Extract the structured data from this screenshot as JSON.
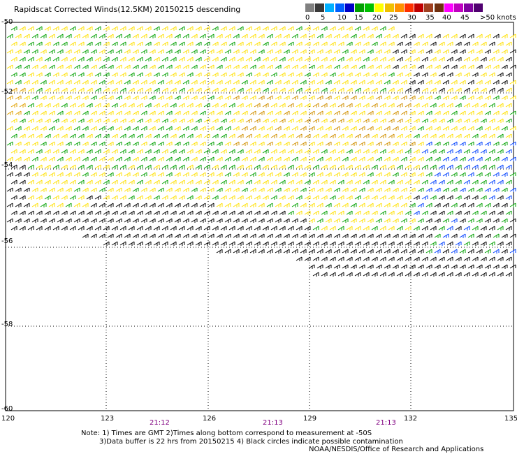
{
  "title": "Rapidscat Corrected Winds(12.5KM) 20150215 descending",
  "scale": {
    "colors": [
      "#808080",
      "#3a3a3a",
      "#00b0ff",
      "#0060ff",
      "#0000c8",
      "#00a000",
      "#00c000",
      "#ffff00",
      "#f0c000",
      "#ff9000",
      "#ff3000",
      "#c00000",
      "#a04020",
      "#703010",
      "#ff00ff",
      "#c000c0",
      "#8000a0",
      "#500070"
    ],
    "labels": [
      "0",
      "5",
      "10",
      "15",
      "20",
      "25",
      "30",
      "35",
      "40",
      "45",
      ">50 knots"
    ]
  },
  "lat_labels": [
    "-50",
    "-52",
    "-54",
    "-56",
    "-58",
    "-60"
  ],
  "lon_labels": [
    "120",
    "123",
    "126",
    "129",
    "132",
    "135"
  ],
  "times": [
    "21:12",
    "21:13",
    "21:13"
  ],
  "notes": [
    "Note: 1) Times are GMT 2)Times along bottom correspond to measurement at -50S",
    "3)Data buffer is 22 hrs from 20150215 4) Black circles indicate possible contamination",
    "NOAA/NESDIS/Office of Research and Applications"
  ]
}
